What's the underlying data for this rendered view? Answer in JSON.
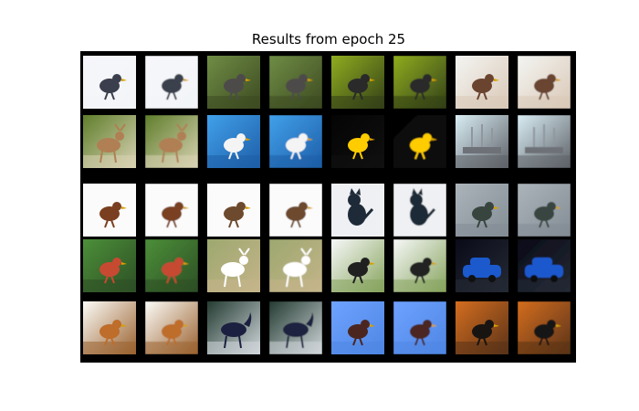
{
  "figure": {
    "title": "Results from epoch 25",
    "grid": {
      "rows": 5,
      "pairs_per_row": 4
    }
  },
  "pairs": [
    {
      "subject": "bird",
      "bg": "#f6f7fb",
      "accent": "#3b3f4d",
      "ground": "#f2f4f7",
      "variant": 0
    },
    {
      "subject": "bird",
      "bg": "#6f8d45",
      "accent": "#4d4b49",
      "ground": "#3d4a21",
      "variant": 1
    },
    {
      "subject": "bird",
      "bg": "#8fad1f",
      "accent": "#2a2a2a",
      "ground": "#334018",
      "variant": 2
    },
    {
      "subject": "bird",
      "bg": "#f4f5f2",
      "accent": "#6b4430",
      "ground": "#d9c8b7",
      "variant": 3
    },
    {
      "subject": "deer",
      "bg": "#5f7e2b",
      "accent": "#b07f53",
      "ground": "#d8d2b3",
      "variant": 4
    },
    {
      "subject": "bird",
      "bg": "#41a0ea",
      "accent": "#f4f4f4",
      "ground": "#1e5ea8",
      "variant": 5
    },
    {
      "subject": "bird",
      "bg": "#040404",
      "accent": "#ffcc00",
      "ground": "#101010",
      "variant": 6
    },
    {
      "subject": "ship",
      "bg": "#d9edf4",
      "accent": "#6e7278",
      "ground": "#5e6268",
      "variant": 7
    },
    {
      "subject": "bird",
      "bg": "#fbfbfb",
      "accent": "#7a3f20",
      "ground": "#fbfbfb",
      "variant": 8
    },
    {
      "subject": "bird",
      "bg": "#fbfbfb",
      "accent": "#6d4a2d",
      "ground": "#fbfbfb",
      "variant": 9
    },
    {
      "subject": "cat",
      "bg": "#eef0f3",
      "accent": "#1f2a39",
      "ground": "#eef0f3",
      "variant": 10
    },
    {
      "subject": "bird",
      "bg": "#acb4ba",
      "accent": "#38453f",
      "ground": "#838d95",
      "variant": 11
    },
    {
      "subject": "bird",
      "bg": "#4c8f39",
      "accent": "#c64a31",
      "ground": "#2d4f25",
      "variant": 12
    },
    {
      "subject": "deer",
      "bg": "#9da86f",
      "accent": "#ffffff",
      "ground": "#c4b48a",
      "variant": 13
    },
    {
      "subject": "bird",
      "bg": "#f7f8f8",
      "accent": "#202020",
      "ground": "#87a45e",
      "variant": 14
    },
    {
      "subject": "car",
      "bg": "#0a0a18",
      "accent": "#1b59cd",
      "ground": "#242a34",
      "variant": 15
    },
    {
      "subject": "bird",
      "bg": "#fcfcf8",
      "accent": "#be6d2a",
      "ground": "#9a6230",
      "variant": 16
    },
    {
      "subject": "horse",
      "bg": "#243c32",
      "accent": "#1c2040",
      "ground": "#d0d6da",
      "variant": 17
    },
    {
      "subject": "bird",
      "bg": "#6ea2ff",
      "accent": "#4b2620",
      "ground": "#4f86e4",
      "variant": 18
    },
    {
      "subject": "bird",
      "bg": "#d46d1f",
      "accent": "#181412",
      "ground": "#5a3318",
      "variant": 19
    }
  ]
}
